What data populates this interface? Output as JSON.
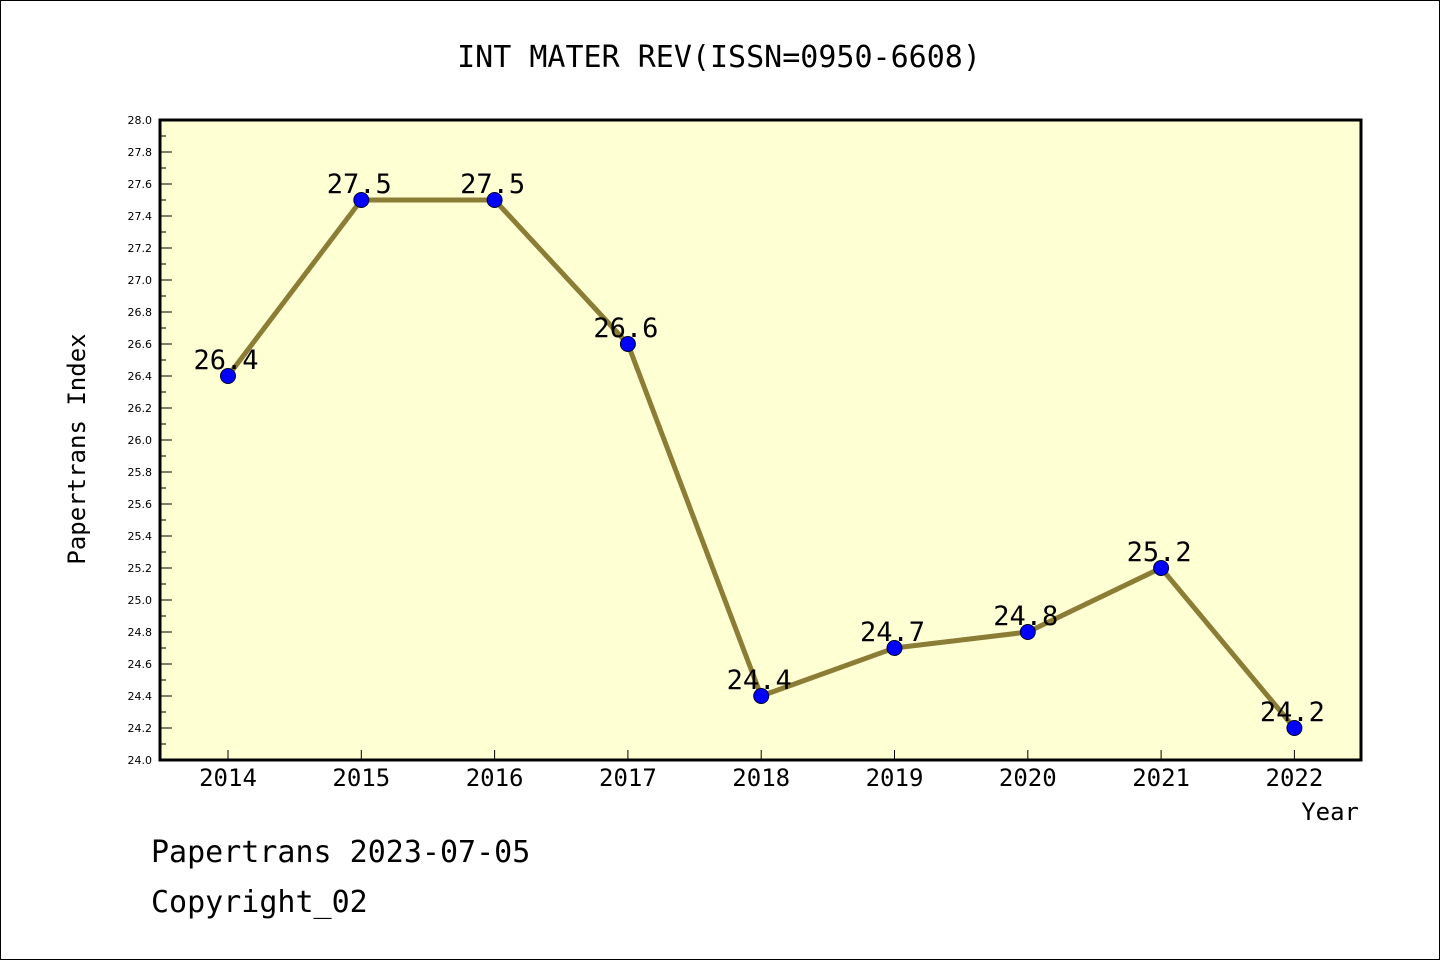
{
  "chart_data": {
    "type": "line",
    "title": "INT MATER REV(ISSN=0950-6608)",
    "xlabel": "Year",
    "ylabel": "Papertrans Index",
    "categories": [
      "2014",
      "2015",
      "2016",
      "2017",
      "2018",
      "2019",
      "2020",
      "2021",
      "2022"
    ],
    "series": [
      {
        "values": [
          26.4,
          27.5,
          27.5,
          26.6,
          24.4,
          24.7,
          24.8,
          25.2,
          24.2
        ],
        "data_labels": [
          "26.4",
          "27.5",
          "27.5",
          "26.6",
          "24.4",
          "24.7",
          "24.8",
          "25.2",
          "24.2"
        ]
      }
    ],
    "ylim": [
      24.0,
      28.0
    ],
    "ytick_step": 0.2,
    "ytick_labels": [
      "24.0",
      "24.2",
      "24.4",
      "24.6",
      "24.8",
      "25.0",
      "25.2",
      "25.4",
      "25.6",
      "25.8",
      "26.0",
      "26.2",
      "26.4",
      "26.6",
      "26.8",
      "27.0",
      "27.2",
      "27.4",
      "27.6",
      "27.8",
      "28.0"
    ],
    "grid": false,
    "legend": "none",
    "colors": {
      "plot_background": "#ffffd4",
      "line": "#8b7d35",
      "marker": "#0000ff"
    }
  },
  "footer": {
    "line1": "Papertrans 2023-07-05",
    "line2": "Copyright_02"
  }
}
